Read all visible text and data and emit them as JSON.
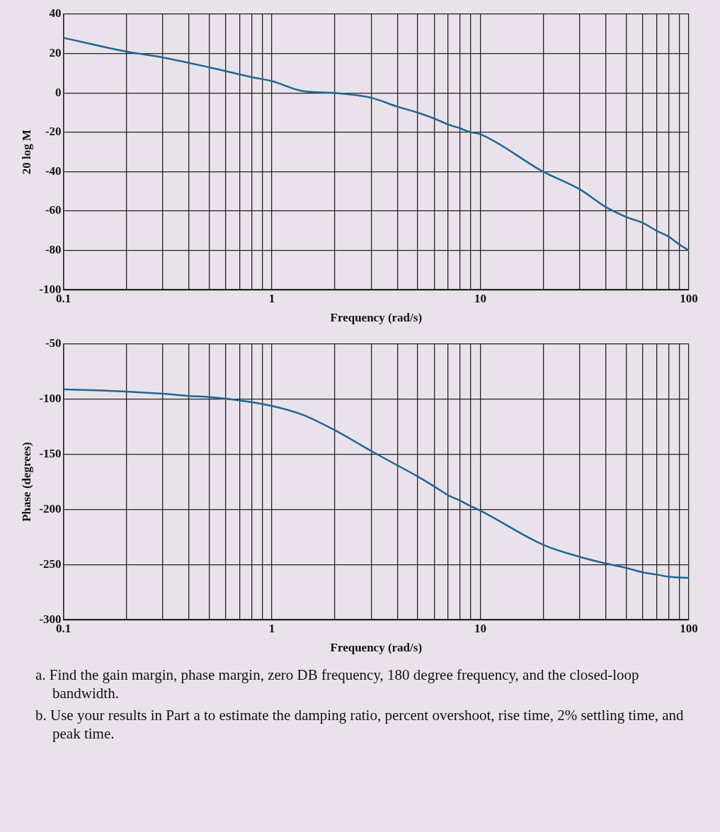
{
  "chart_data": [
    {
      "type": "line",
      "xlabel": "Frequency (rad/s)",
      "ylabel": "20 log M",
      "log": "x",
      "grid": true,
      "legend": false,
      "marker": "none",
      "line_style": "solid",
      "xlim": [
        0.1,
        100
      ],
      "xticks": [
        0.1,
        {
          "value": 0.2,
          "label": null
        },
        {
          "value": 0.3,
          "label": null
        },
        {
          "value": 0.4,
          "label": null
        },
        {
          "value": 0.5,
          "label": null
        },
        {
          "value": 0.6,
          "label": null
        },
        {
          "value": 0.7,
          "label": null
        },
        {
          "value": 0.8,
          "label": null
        },
        {
          "value": 0.9,
          "label": null
        },
        1,
        {
          "value": 2,
          "label": null
        },
        {
          "value": 3,
          "label": null
        },
        {
          "value": 4,
          "label": null
        },
        {
          "value": 5,
          "label": null
        },
        {
          "value": 6,
          "label": null
        },
        {
          "value": 7,
          "label": null
        },
        {
          "value": 8,
          "label": null
        },
        {
          "value": 9,
          "label": null
        },
        10,
        {
          "value": 20,
          "label": null
        },
        {
          "value": 30,
          "label": null
        },
        {
          "value": 40,
          "label": null
        },
        {
          "value": 50,
          "label": null
        },
        {
          "value": 60,
          "label": null
        },
        {
          "value": 70,
          "label": null
        },
        {
          "value": 80,
          "label": null
        },
        {
          "value": 90,
          "label": null
        },
        100
      ],
      "ylim": [
        -100,
        40
      ],
      "yticks": [
        -100,
        -80,
        -60,
        -40,
        -20,
        0,
        20,
        40
      ],
      "series": [
        {
          "color": "#1f6694",
          "x": [
            0.1,
            0.2,
            0.3,
            0.5,
            0.8,
            1,
            1.4,
            2,
            3,
            4,
            5,
            6,
            7,
            8,
            9,
            10,
            20,
            30,
            40,
            50,
            60,
            70,
            80,
            90,
            100
          ],
          "values": [
            28,
            21,
            18,
            13,
            8,
            6,
            1,
            0,
            -2.5,
            -7,
            -10,
            -13,
            -16,
            -18,
            -20,
            -21,
            -40,
            -49,
            -58,
            -63,
            -66,
            -70,
            -73,
            -77,
            -80
          ]
        }
      ]
    },
    {
      "type": "line",
      "xlabel": "Frequency (rad/s)",
      "ylabel": "Phase (degrees)",
      "log": "x",
      "grid": true,
      "legend": false,
      "marker": "none",
      "line_style": "solid",
      "xlim": [
        0.1,
        100
      ],
      "xticks": [
        0.1,
        {
          "value": 0.2,
          "label": null
        },
        {
          "value": 0.3,
          "label": null
        },
        {
          "value": 0.4,
          "label": null
        },
        {
          "value": 0.5,
          "label": null
        },
        {
          "value": 0.6,
          "label": null
        },
        {
          "value": 0.7,
          "label": null
        },
        {
          "value": 0.8,
          "label": null
        },
        {
          "value": 0.9,
          "label": null
        },
        1,
        {
          "value": 2,
          "label": null
        },
        {
          "value": 3,
          "label": null
        },
        {
          "value": 4,
          "label": null
        },
        {
          "value": 5,
          "label": null
        },
        {
          "value": 6,
          "label": null
        },
        {
          "value": 7,
          "label": null
        },
        {
          "value": 8,
          "label": null
        },
        {
          "value": 9,
          "label": null
        },
        10,
        {
          "value": 20,
          "label": null
        },
        {
          "value": 30,
          "label": null
        },
        {
          "value": 40,
          "label": null
        },
        {
          "value": 50,
          "label": null
        },
        {
          "value": 60,
          "label": null
        },
        {
          "value": 70,
          "label": null
        },
        {
          "value": 80,
          "label": null
        },
        {
          "value": 90,
          "label": null
        },
        100
      ],
      "ylim": [
        -300,
        -50
      ],
      "yticks": [
        -300,
        -250,
        -200,
        -150,
        -100,
        -50
      ],
      "series": [
        {
          "color": "#1f6694",
          "x": [
            0.1,
            0.2,
            0.3,
            0.4,
            0.5,
            0.7,
            1,
            1.4,
            2,
            3,
            4,
            5,
            6,
            7,
            8,
            9,
            10,
            20,
            30,
            40,
            50,
            60,
            70,
            80,
            100
          ],
          "values": [
            -91,
            -93,
            -95,
            -97,
            -98,
            -101,
            -106,
            -114,
            -128,
            -147,
            -160,
            -170,
            -179,
            -187,
            -192,
            -197,
            -201,
            -232,
            -243,
            -249,
            -253,
            -257,
            -259,
            -261,
            -262
          ]
        }
      ],
      "annotations": [
        "a. Find the gain margin, phase margin, zero DB frequency, 180 degree frequency, and the closed-loop bandwidth.",
        "b. Use your results in Part a to estimate the damping ratio, percent overshoot, rise time, 2% settling time, and peak time."
      ]
    }
  ]
}
